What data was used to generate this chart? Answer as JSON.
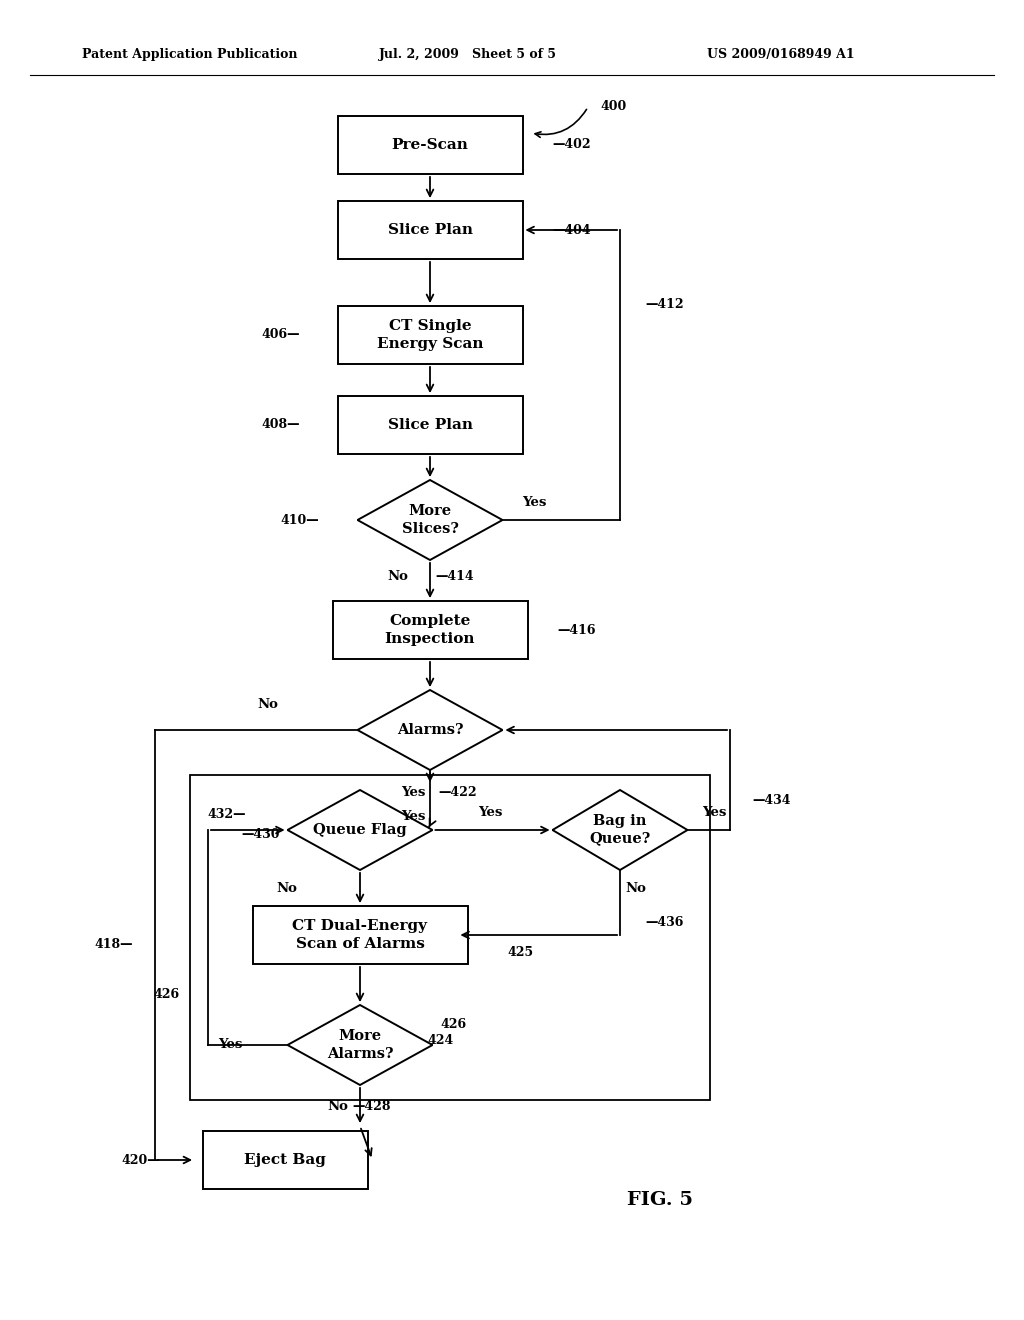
{
  "bg_color": "#ffffff",
  "header_left": "Patent Application Publication",
  "header_mid": "Jul. 2, 2009   Sheet 5 of 5",
  "header_right": "US 2009/0168949 A1",
  "fig_label": "FIG. 5"
}
